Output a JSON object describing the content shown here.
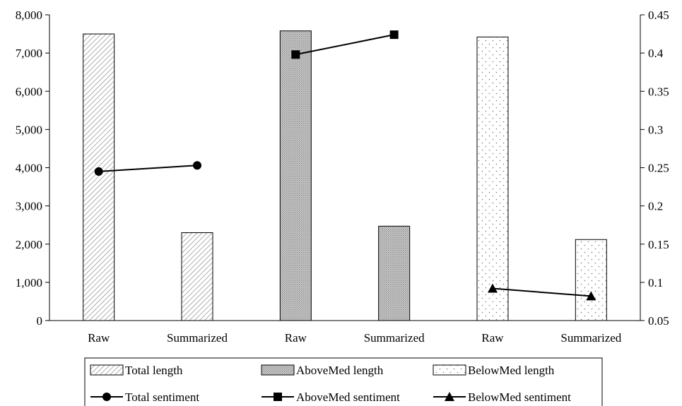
{
  "chart_data": {
    "type": "bar",
    "categories": [
      "Raw",
      "Summarized",
      "Raw",
      "Summarized",
      "Raw",
      "Summarized"
    ],
    "y_left": {
      "min": 0,
      "max": 8000,
      "step": 1000,
      "ticks": [
        "0",
        "1,000",
        "2,000",
        "3,000",
        "4,000",
        "5,000",
        "6,000",
        "7,000",
        "8,000"
      ]
    },
    "y_right": {
      "min": 0.05,
      "max": 0.45,
      "step": 0.05,
      "ticks": [
        "0.05",
        "0.1",
        "0.15",
        "0.2",
        "0.25",
        "0.3",
        "0.35",
        "0.4",
        "0.45"
      ]
    },
    "bar_series": [
      {
        "name": "Total length",
        "pattern": "diagonal",
        "category_index": [
          0,
          1
        ],
        "values": [
          7500,
          2300
        ]
      },
      {
        "name": "AboveMed length",
        "pattern": "dense-dots",
        "category_index": [
          2,
          3
        ],
        "values": [
          7580,
          2470
        ]
      },
      {
        "name": "BelowMed length",
        "pattern": "sparse-dots",
        "category_index": [
          4,
          5
        ],
        "values": [
          7420,
          2120
        ]
      }
    ],
    "line_series": [
      {
        "name": "Total sentiment",
        "marker": "circle",
        "category_index": [
          0,
          1
        ],
        "values": [
          0.245,
          0.253
        ]
      },
      {
        "name": "AboveMed sentiment",
        "marker": "square",
        "category_index": [
          2,
          3
        ],
        "values": [
          0.398,
          0.424
        ]
      },
      {
        "name": "BelowMed sentiment",
        "marker": "triangle",
        "category_index": [
          4,
          5
        ],
        "values": [
          0.092,
          0.082
        ]
      }
    ],
    "grid": false,
    "legend_position": "bottom",
    "colors": {
      "line": "#000000",
      "bar_outline": "#000000",
      "dense_fill": "#c8c8c8",
      "diag_stroke": "#8c8c8c",
      "dot_fill": "#7a7a7a"
    }
  }
}
